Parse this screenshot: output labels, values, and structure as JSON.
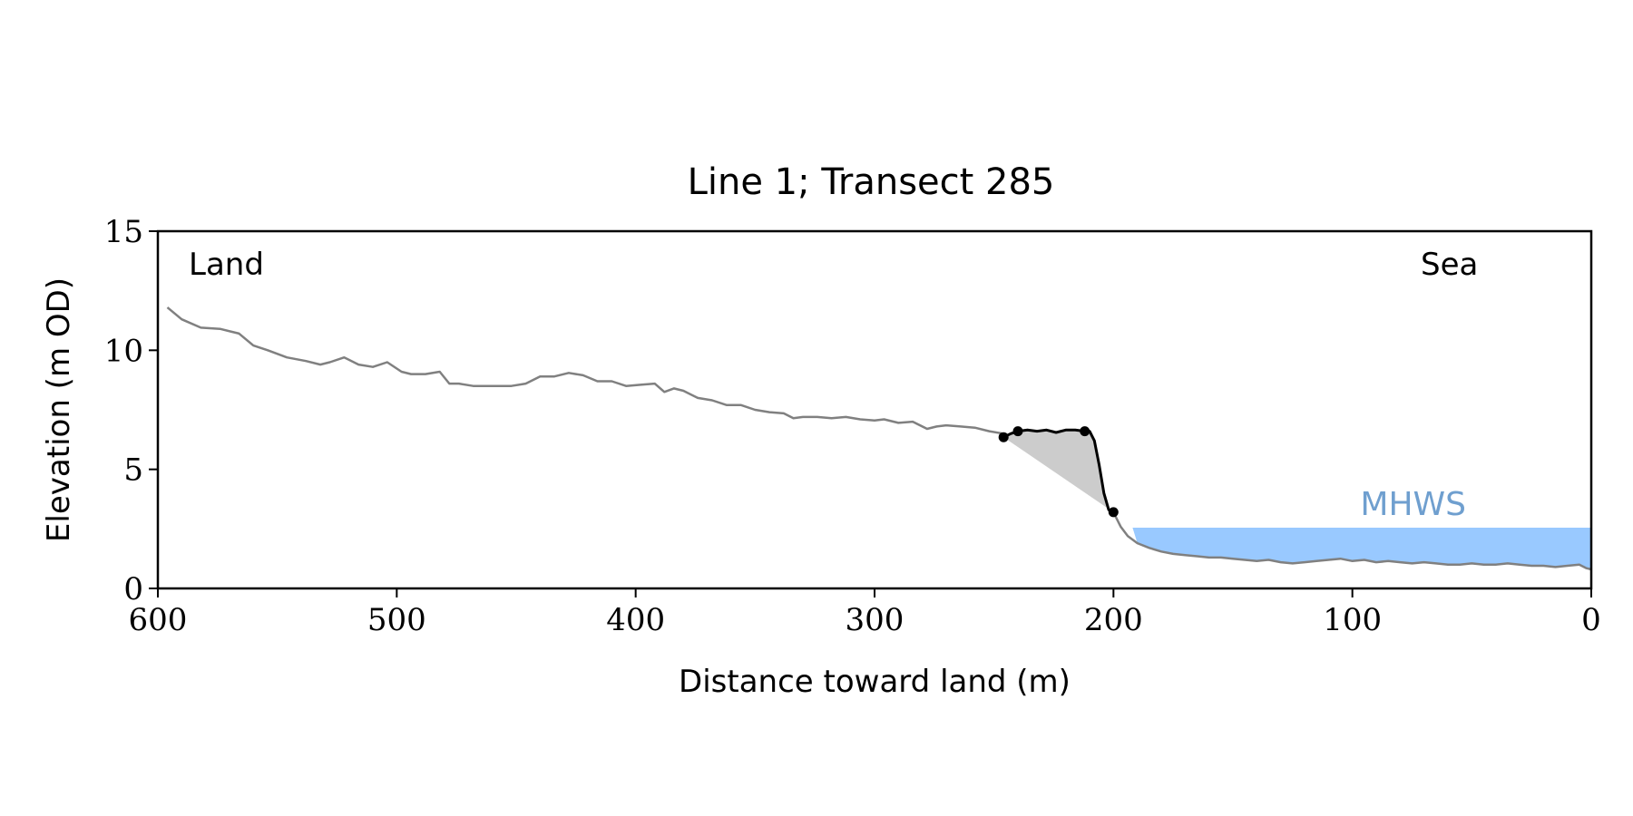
{
  "chart_data": {
    "type": "line",
    "title": "Line 1; Transect 285",
    "xlabel": "Distance toward land (m)",
    "ylabel": "Elevation (m OD)",
    "xlim": [
      600,
      0
    ],
    "ylim": [
      0,
      15
    ],
    "x_ticks": [
      "600",
      "500",
      "400",
      "300",
      "200",
      "100",
      "0"
    ],
    "y_ticks": [
      "0",
      "5",
      "10",
      "15"
    ],
    "grid": false,
    "annotations": {
      "land": "Land",
      "sea": "Sea",
      "mhws": "MHWS"
    },
    "mhws_level": 2.55,
    "mhws_x_range": [
      192,
      0
    ],
    "colors": {
      "profile": "#808080",
      "dune": "#000000",
      "fill": "#cccccc",
      "water": "#99c9ff",
      "mhws_text": "#6f9fcf"
    },
    "profile": {
      "x": [
        596,
        590,
        582,
        574,
        566,
        560,
        554,
        546,
        538,
        532,
        528,
        522,
        516,
        510,
        504,
        498,
        494,
        488,
        482,
        478,
        474,
        468,
        460,
        452,
        446,
        440,
        434,
        428,
        422,
        416,
        410,
        404,
        398,
        392,
        388,
        384,
        380,
        374,
        368,
        362,
        356,
        350,
        344,
        338,
        334,
        330,
        324,
        318,
        312,
        306,
        300,
        296,
        290,
        284,
        278,
        274,
        270,
        264,
        258,
        252,
        246
      ],
      "y": [
        11.8,
        11.3,
        10.95,
        10.9,
        10.7,
        10.2,
        10.0,
        9.7,
        9.55,
        9.4,
        9.5,
        9.7,
        9.4,
        9.3,
        9.5,
        9.1,
        9.0,
        9.0,
        9.1,
        8.6,
        8.6,
        8.5,
        8.5,
        8.5,
        8.6,
        8.9,
        8.9,
        9.05,
        8.95,
        8.7,
        8.7,
        8.5,
        8.55,
        8.6,
        8.25,
        8.4,
        8.3,
        8.0,
        7.9,
        7.7,
        7.7,
        7.5,
        7.4,
        7.35,
        7.15,
        7.2,
        7.2,
        7.15,
        7.2,
        7.1,
        7.05,
        7.1,
        6.95,
        7.0,
        6.7,
        6.8,
        6.85,
        6.8,
        6.75,
        6.6,
        6.5
      ]
    },
    "dune": {
      "x": [
        246,
        243,
        240,
        236,
        232,
        228,
        224,
        220,
        216,
        212,
        210,
        208,
        206,
        204,
        202,
        200
      ],
      "y": [
        6.35,
        6.5,
        6.6,
        6.65,
        6.6,
        6.65,
        6.55,
        6.65,
        6.65,
        6.6,
        6.6,
        6.2,
        5.2,
        4.0,
        3.3,
        3.2
      ]
    },
    "beach": {
      "x": [
        200,
        197,
        194,
        190,
        185,
        180,
        175,
        170,
        165,
        160,
        155,
        150,
        145,
        140,
        135,
        130,
        125,
        120,
        115,
        110,
        105,
        100,
        95,
        90,
        85,
        80,
        75,
        70,
        65,
        60,
        55,
        50,
        45,
        40,
        35,
        30,
        25,
        20,
        15,
        10,
        5,
        2,
        0
      ],
      "y": [
        3.2,
        2.6,
        2.2,
        1.9,
        1.7,
        1.55,
        1.45,
        1.4,
        1.35,
        1.3,
        1.3,
        1.25,
        1.2,
        1.15,
        1.2,
        1.1,
        1.05,
        1.1,
        1.15,
        1.2,
        1.25,
        1.15,
        1.2,
        1.1,
        1.15,
        1.1,
        1.05,
        1.1,
        1.05,
        1.0,
        1.0,
        1.05,
        1.0,
        1.0,
        1.05,
        1.0,
        0.95,
        0.95,
        0.9,
        0.95,
        1.0,
        0.85,
        0.8
      ]
    },
    "markers": [
      {
        "x": 246,
        "y": 6.35
      },
      {
        "x": 240,
        "y": 6.6
      },
      {
        "x": 212,
        "y": 6.6
      },
      {
        "x": 200,
        "y": 3.2
      }
    ]
  }
}
